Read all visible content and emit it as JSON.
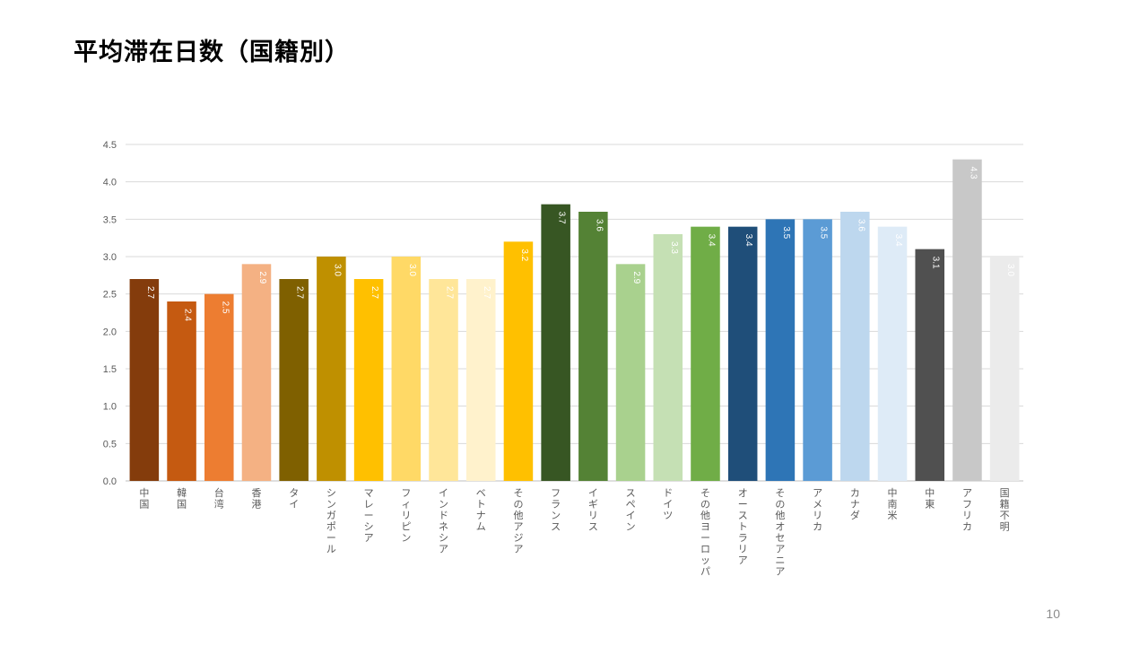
{
  "slide": {
    "title": "平均滞在日数（国籍別）",
    "page_number": "10"
  },
  "chart_data": {
    "type": "bar",
    "title": "",
    "xlabel": "",
    "ylabel": "",
    "ylim": [
      0,
      4.5
    ],
    "yticks": [
      "0.0",
      "0.5",
      "1.0",
      "1.5",
      "2.0",
      "2.5",
      "3.0",
      "3.5",
      "4.0",
      "4.5"
    ],
    "grid": true,
    "legend": "none",
    "categories": [
      "中国",
      "韓国",
      "台湾",
      "香港",
      "タイ",
      "シンガポール",
      "マレーシア",
      "フィリピン",
      "インドネシア",
      "ベトナム",
      "その他アジア",
      "フランス",
      "イギリス",
      "スペイン",
      "ドイツ",
      "その他ヨーロッパ",
      "オーストラリア",
      "その他オセアニア",
      "アメリカ",
      "カナダ",
      "中南米",
      "中東",
      "アフリカ",
      "国籍不明"
    ],
    "values": [
      2.7,
      2.4,
      2.5,
      2.9,
      2.7,
      3.0,
      2.7,
      3.0,
      2.7,
      2.7,
      3.2,
      3.7,
      3.6,
      2.9,
      3.3,
      3.4,
      3.4,
      3.5,
      3.5,
      3.6,
      3.4,
      3.1,
      4.3,
      3.0
    ],
    "data_labels": [
      "2.7",
      "2.4",
      "2.5",
      "2.9",
      "2.7",
      "3.0",
      "2.7",
      "3.0",
      "2.7",
      "2.7",
      "3.2",
      "3.7",
      "3.6",
      "2.9",
      "3.3",
      "3.4",
      "3.4",
      "3.5",
      "3.5",
      "3.6",
      "3.4",
      "3.1",
      "4.3",
      "3.0"
    ],
    "colors": [
      "#843C0C",
      "#C55A11",
      "#ED7D31",
      "#F4B183",
      "#7F6000",
      "#BF9000",
      "#FFC000",
      "#FFD966",
      "#FFE699",
      "#FFF2CC",
      "#FFC000",
      "#375623",
      "#548235",
      "#A9D18E",
      "#C5E0B4",
      "#70AD47",
      "#1F4E79",
      "#2E75B6",
      "#5B9BD5",
      "#BDD7EE",
      "#DEEBF7",
      "#505050",
      "#C8C8C8",
      "#EBEBEB"
    ]
  }
}
